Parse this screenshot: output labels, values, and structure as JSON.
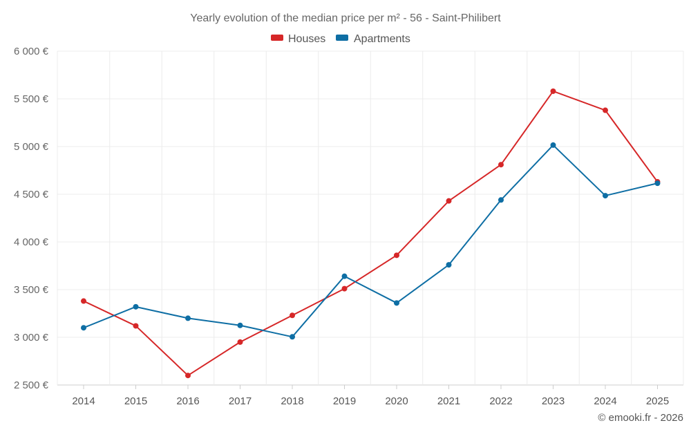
{
  "chart_data": {
    "type": "line",
    "title": "Yearly evolution of the median price per m² - 56 - Saint-Philibert",
    "categories": [
      "2014",
      "2015",
      "2016",
      "2017",
      "2018",
      "2019",
      "2020",
      "2021",
      "2022",
      "2023",
      "2024",
      "2025"
    ],
    "series": [
      {
        "name": "Houses",
        "color": "#d62728",
        "values": [
          3380,
          3120,
          2600,
          2950,
          3230,
          3510,
          3860,
          4430,
          4810,
          5580,
          5380,
          4630
        ]
      },
      {
        "name": "Apartments",
        "color": "#0e6ea4",
        "values": [
          3100,
          3320,
          3200,
          3125,
          3005,
          3640,
          3360,
          3760,
          4440,
          5015,
          4485,
          4615
        ]
      }
    ],
    "yticks": [
      2500,
      3000,
      3500,
      4000,
      4500,
      5000,
      5500,
      6000
    ],
    "ytick_labels": [
      "2 500 €",
      "3 000 €",
      "3 500 €",
      "4 000 €",
      "4 500 €",
      "5 000 €",
      "5 500 €",
      "6 000 €"
    ],
    "ylim": [
      2500,
      6000
    ],
    "xlabel": "",
    "ylabel": "",
    "legend_position": "top-center",
    "grid": true
  },
  "credit": "© emooki.fr - 2026"
}
